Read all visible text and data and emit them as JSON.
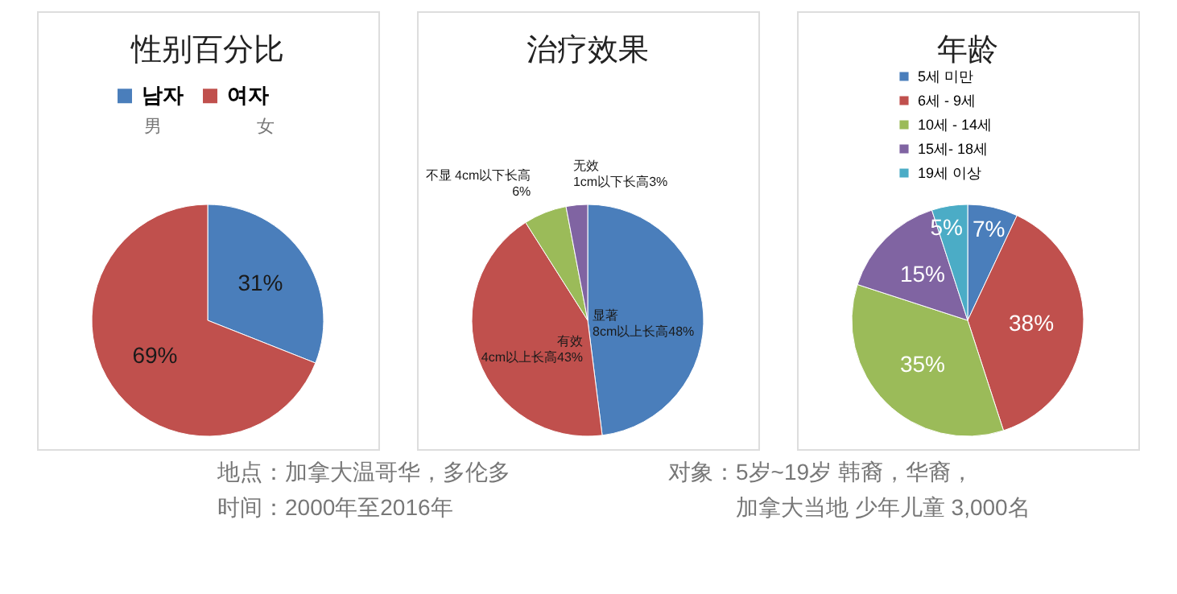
{
  "chart_data": [
    {
      "type": "pie",
      "title": "性别百分比",
      "categories": [
        "남자",
        "여자"
      ],
      "values": [
        31,
        69
      ],
      "colors": [
        "#4a7ebb",
        "#c0504d"
      ],
      "value_labels": [
        "31%",
        "69%"
      ],
      "legend": "top",
      "annotations": [
        "男",
        "女"
      ]
    },
    {
      "type": "pie",
      "title": "治疗效果",
      "categories": [
        "显著\n8cm以上长高",
        "有效\n4cm以上长高",
        "不显 4cm以下长高\n",
        "无效\n1cm以下长高"
      ],
      "values": [
        48,
        43,
        6,
        3
      ],
      "colors": [
        "#4a7ebb",
        "#c0504d",
        "#9bbb59",
        "#8064a2"
      ],
      "value_labels": [
        "48%",
        "43%",
        "6%",
        "3%"
      ]
    },
    {
      "type": "pie",
      "title": "年龄",
      "categories": [
        "5세 미만",
        "6세 - 9세",
        "10세 - 14세",
        "15세- 18세",
        "19세 이상"
      ],
      "values": [
        7,
        38,
        35,
        15,
        5
      ],
      "colors": [
        "#4a7ebb",
        "#c0504d",
        "#9bbb59",
        "#8064a2",
        "#4bacc6"
      ],
      "value_labels": [
        "7%",
        "38%",
        "35%",
        "15%",
        "5%"
      ],
      "legend": "top",
      "annotations": [
        "地点：加拿大温哥华，多伦多",
        "时间：2000年至2016年",
        "对象：5岁~19岁 韩裔，华裔，",
        "加拿大当地 少年儿童 3,000名"
      ]
    }
  ]
}
